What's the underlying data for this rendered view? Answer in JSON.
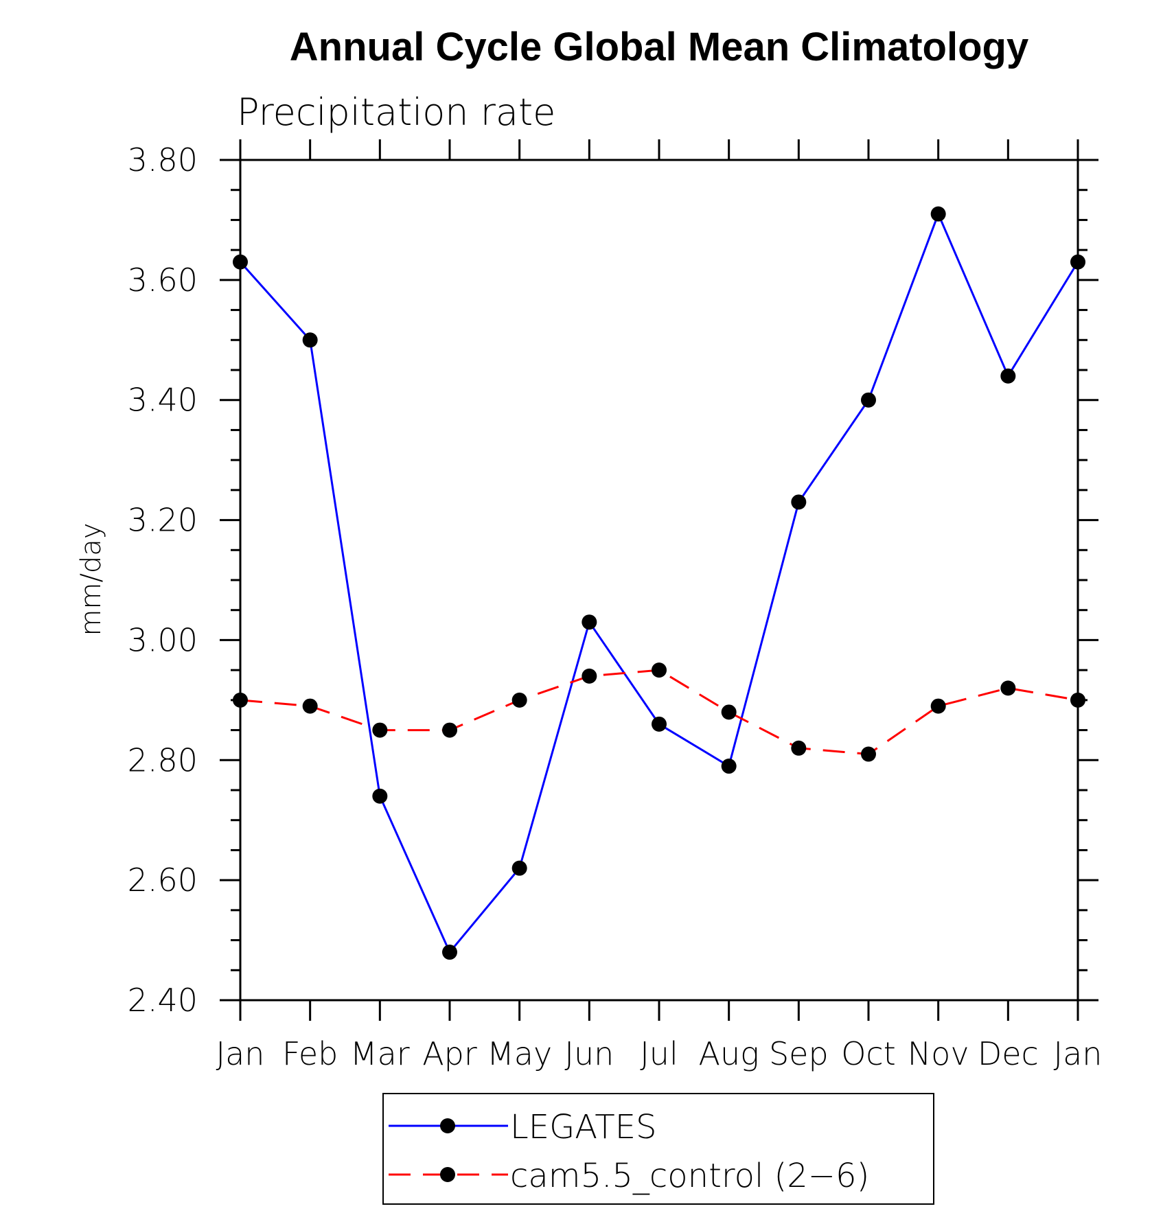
{
  "chart_data": {
    "type": "line",
    "title": "Annual Cycle Global Mean Climatology",
    "subtitle": "Precipitation rate",
    "xlabel": "",
    "ylabel": "mm/day",
    "categories": [
      "Jan",
      "Feb",
      "Mar",
      "Apr",
      "May",
      "Jun",
      "Jul",
      "Aug",
      "Sep",
      "Oct",
      "Nov",
      "Dec",
      "Jan"
    ],
    "ylim": [
      2.4,
      3.8
    ],
    "yticks": [
      "2.40",
      "2.60",
      "2.80",
      "3.00",
      "3.20",
      "3.40",
      "3.60",
      "3.80"
    ],
    "grid": false,
    "legend_position": "bottom",
    "series": [
      {
        "name": "LEGATES",
        "color": "#0000ff",
        "line_style": "solid",
        "marker": "filled-circle",
        "values": [
          3.63,
          3.5,
          2.74,
          2.48,
          2.62,
          3.03,
          2.86,
          2.79,
          3.23,
          3.4,
          3.71,
          3.44,
          3.63
        ]
      },
      {
        "name": "cam5.5_control (2−6)",
        "color": "#ff0000",
        "line_style": "dashed",
        "marker": "filled-circle",
        "values": [
          2.9,
          2.89,
          2.85,
          2.85,
          2.9,
          2.94,
          2.95,
          2.88,
          2.82,
          2.81,
          2.89,
          2.92,
          2.9
        ]
      }
    ]
  }
}
